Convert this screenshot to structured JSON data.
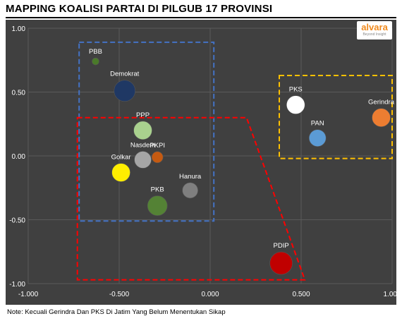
{
  "title": "MAPPING KOALISI PARTAI DI PILGUB 17 PROVINSI",
  "note": "Note: Kecuali Gerindra Dan PKS Di Jatim Yang Belum Menentukan Sikap",
  "logo": {
    "name": "alvara",
    "tagline": "Beyond Insight",
    "color": "#f08a1d"
  },
  "colors": {
    "background": "#404040",
    "grid": "#5a5a5a",
    "tick_text": "#ffffff",
    "label_text": "#ffffff"
  },
  "chart_data": {
    "type": "scatter",
    "xlim": [
      -1.0,
      1.0
    ],
    "ylim": [
      -1.0,
      1.0
    ],
    "x_ticks": [
      "-1.000",
      "-0.500",
      "0.000",
      "0.500",
      "1.000"
    ],
    "x_tick_values": [
      -1.0,
      -0.5,
      0.0,
      0.5,
      1.0
    ],
    "y_ticks": [
      "1.00",
      "0.50",
      "0.00",
      "-0.50",
      "-1.00"
    ],
    "y_tick_values": [
      1.0,
      0.5,
      0.0,
      -0.5,
      -1.0
    ],
    "grid": true,
    "points": [
      {
        "label": "PBB",
        "x": -0.63,
        "y": 0.74,
        "size": 5,
        "color": "#4a7a2a"
      },
      {
        "label": "Demokrat",
        "x": -0.47,
        "y": 0.51,
        "size": 15,
        "color": "#1f3864"
      },
      {
        "label": "PPP",
        "x": -0.37,
        "y": 0.2,
        "size": 13,
        "color": "#a9d18e"
      },
      {
        "label": "Nasdem",
        "x": -0.37,
        "y": -0.03,
        "size": 12,
        "color": "#a5a5a5"
      },
      {
        "label": "PKPI",
        "x": -0.29,
        "y": -0.01,
        "size": 8,
        "color": "#c55a11"
      },
      {
        "label": "Golkar",
        "x": -0.49,
        "y": -0.13,
        "size": 13,
        "color": "#ffee00"
      },
      {
        "label": "Hanura",
        "x": -0.11,
        "y": -0.27,
        "size": 11,
        "color": "#7f7f7f"
      },
      {
        "label": "PKB",
        "x": -0.29,
        "y": -0.39,
        "size": 14,
        "color": "#548235"
      },
      {
        "label": "PKS",
        "x": 0.47,
        "y": 0.4,
        "size": 13,
        "color": "#ffffff"
      },
      {
        "label": "PAN",
        "x": 0.59,
        "y": 0.14,
        "size": 12,
        "color": "#5b9bd5"
      },
      {
        "label": "Gerindra",
        "x": 0.94,
        "y": 0.3,
        "size": 13,
        "color": "#ed7d31"
      },
      {
        "label": "PDIP",
        "x": 0.39,
        "y": -0.84,
        "size": 16,
        "color": "#c00000"
      }
    ],
    "groups": [
      {
        "name": "blue-group",
        "color": "#4472c4",
        "polygon": [
          [
            -0.72,
            0.89
          ],
          [
            0.02,
            0.89
          ],
          [
            0.02,
            -0.51
          ],
          [
            -0.72,
            -0.51
          ]
        ]
      },
      {
        "name": "orange-group",
        "color": "#ffc000",
        "polygon": [
          [
            0.38,
            0.63
          ],
          [
            1.0,
            0.63
          ],
          [
            1.0,
            -0.02
          ],
          [
            0.38,
            -0.02
          ]
        ]
      },
      {
        "name": "red-group",
        "color": "#ff0000",
        "polygon": [
          [
            -0.73,
            0.3
          ],
          [
            0.2,
            0.3
          ],
          [
            0.52,
            -0.97
          ],
          [
            -0.73,
            -0.97
          ]
        ]
      }
    ]
  }
}
